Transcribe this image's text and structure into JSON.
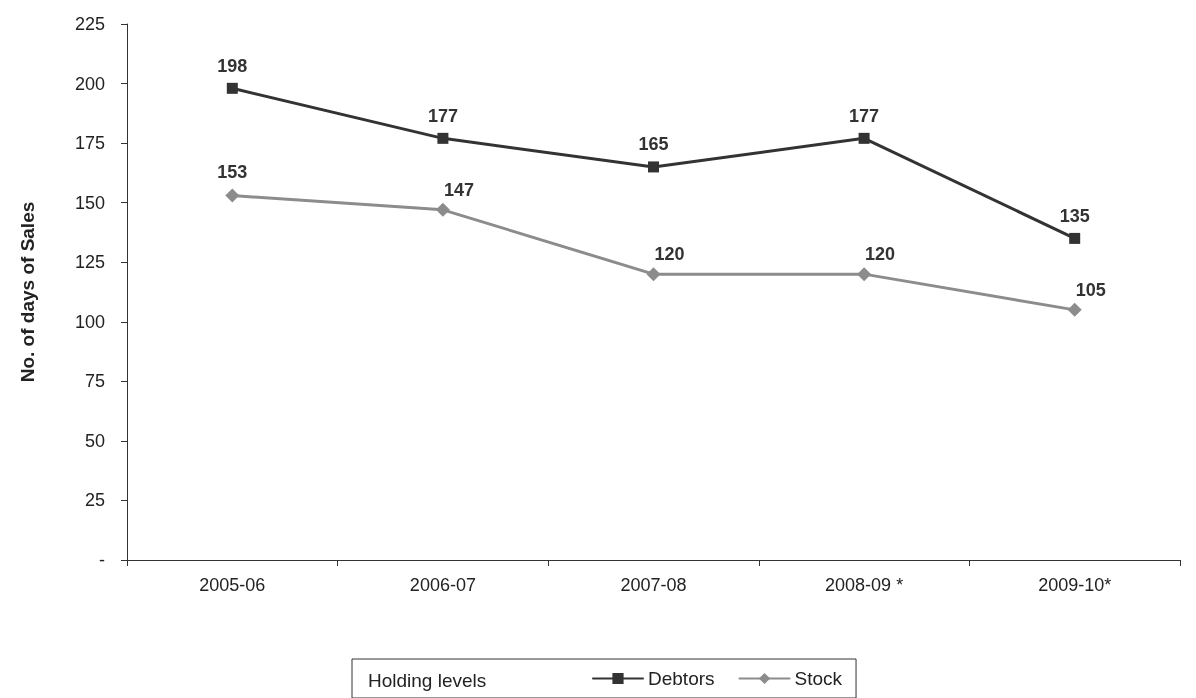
{
  "chart_data": {
    "type": "line",
    "ylabel": "No. of days of Sales",
    "legend_title": "Holding levels",
    "categories": [
      "2005-06",
      "2006-07",
      "2007-08",
      "2008-09 *",
      "2009-10*"
    ],
    "series": [
      {
        "name": "Debtors",
        "color": "#333333",
        "marker": "square",
        "values": [
          198,
          177,
          165,
          177,
          135
        ]
      },
      {
        "name": "Stock",
        "color": "#8c8c8c",
        "marker": "diamond",
        "values": [
          153,
          147,
          120,
          120,
          105
        ]
      }
    ],
    "ylim": [
      0,
      225
    ],
    "yticks": [
      {
        "value": 0,
        "label": "-"
      },
      25,
      50,
      75,
      100,
      125,
      150,
      175,
      200,
      225
    ],
    "data_labels": true,
    "grid": false,
    "legend": "bottom",
    "line_style": "solid"
  }
}
